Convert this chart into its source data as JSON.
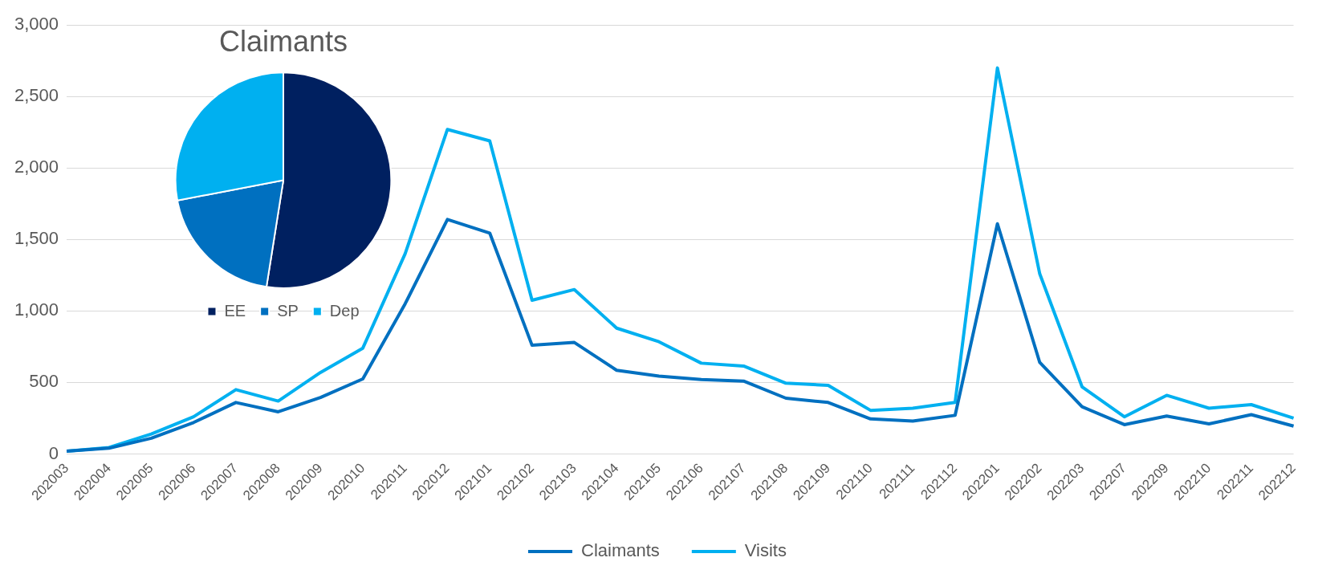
{
  "chart_data": [
    {
      "type": "line",
      "categories": [
        "202003",
        "202004",
        "202005",
        "202006",
        "202007",
        "202008",
        "202009",
        "202010",
        "202011",
        "202012",
        "202101",
        "202102",
        "202103",
        "202104",
        "202105",
        "202106",
        "202107",
        "202108",
        "202109",
        "202110",
        "202111",
        "202112",
        "202201",
        "202202",
        "202203",
        "202207",
        "202209",
        "202210",
        "202211",
        "202212"
      ],
      "series": [
        {
          "name": "Claimants",
          "color": "#0070c0",
          "values": [
            20,
            40,
            110,
            220,
            360,
            295,
            395,
            525,
            1050,
            1640,
            1545,
            760,
            780,
            585,
            545,
            520,
            510,
            390,
            360,
            245,
            230,
            270,
            1610,
            640,
            330,
            205,
            265,
            210,
            275,
            195
          ]
        },
        {
          "name": "Visits",
          "color": "#00b0f0",
          "values": [
            20,
            45,
            140,
            260,
            450,
            370,
            570,
            740,
            1400,
            2270,
            2190,
            1075,
            1150,
            880,
            785,
            635,
            615,
            495,
            480,
            305,
            320,
            360,
            2700,
            1260,
            470,
            260,
            410,
            320,
            345,
            250
          ]
        }
      ],
      "ylim": [
        0,
        3000
      ],
      "yticks": [
        0,
        {
          "value": 500,
          "label": "500"
        },
        {
          "value": 1000,
          "label": "1,000"
        },
        {
          "value": 1500,
          "label": "1,500"
        },
        {
          "value": 2000,
          "label": "2,000"
        },
        {
          "value": 2500,
          "label": "2,500"
        },
        {
          "value": 3000,
          "label": "3,000"
        }
      ],
      "grid": "y",
      "legend": "bottom",
      "marker": "none"
    },
    {
      "type": "pie",
      "title": "Claimants",
      "categories": [
        "EE",
        "SP",
        "Dep"
      ],
      "values": [
        52.5,
        19.5,
        28
      ],
      "colors": [
        "#002060",
        "#0070c0",
        "#00b0f0"
      ],
      "legend": "bottom"
    }
  ]
}
